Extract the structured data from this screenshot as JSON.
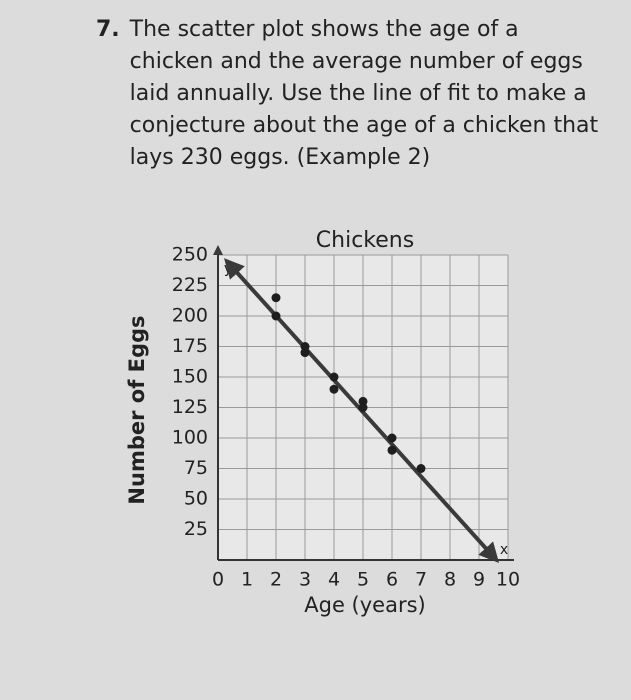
{
  "question": {
    "number": "7.",
    "text": "The scatter plot shows the age of a chicken and the average number of eggs laid annually. Use the line of fit to make a conjecture about the age of a chicken that lays 230 eggs. (Example 2)"
  },
  "chart_data": {
    "type": "scatter",
    "title": "Chickens",
    "x_label": "Age (years)",
    "y_label": "Number of Eggs",
    "x_axis_letter": "x",
    "y_axis_letter": "y",
    "x": [
      2,
      2,
      3,
      3,
      4,
      4,
      5,
      5,
      6,
      6,
      7
    ],
    "values": [
      215,
      200,
      175,
      170,
      150,
      140,
      130,
      125,
      100,
      90,
      75
    ],
    "color": "#1e1e1e",
    "fit_line": {
      "x": [
        0.3,
        9.6
      ],
      "y": [
        245,
        0
      ],
      "color": "#3a3a3a"
    },
    "xlim": [
      0,
      10
    ],
    "ylim": [
      0,
      250
    ],
    "xticks": [
      0,
      1,
      2,
      3,
      4,
      5,
      6,
      7,
      8,
      9,
      10
    ],
    "yticks": [
      25,
      50,
      75,
      100,
      125,
      150,
      175,
      200,
      225,
      250
    ],
    "grid": true
  }
}
